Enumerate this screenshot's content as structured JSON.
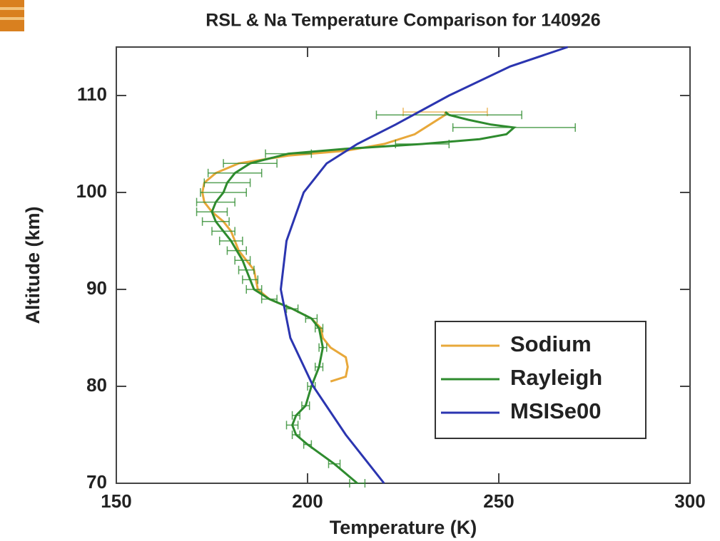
{
  "chart_data": {
    "type": "line",
    "title": "RSL & Na Temperature Comparison for 140926",
    "x_label": "Temperature (K)",
    "y_label": "Altitude (km)",
    "xlim": [
      150,
      300
    ],
    "ylim": [
      70,
      115
    ],
    "xticks": [
      150,
      200,
      250,
      300
    ],
    "yticks": [
      70,
      80,
      90,
      100,
      110
    ],
    "legend": "lower right",
    "series": [
      {
        "name": "Sodium",
        "color": "#e8a83a",
        "y": [
          80.5,
          81,
          82,
          83,
          84,
          85,
          86,
          87,
          88,
          89,
          90,
          91,
          92,
          93,
          94,
          95,
          96,
          97,
          98,
          99,
          100,
          101,
          102,
          103,
          103.8,
          104.3,
          105,
          106,
          107,
          108,
          108.3
        ],
        "x": [
          206,
          210,
          210.5,
          210,
          206,
          204,
          203.5,
          201,
          196,
          190,
          187,
          186.5,
          186,
          184,
          182,
          181,
          180,
          178,
          175,
          173,
          172.5,
          173,
          176,
          182,
          195,
          210,
          220,
          228,
          232,
          236,
          236
        ],
        "xerr": [
          null,
          null,
          null,
          null,
          null,
          null,
          null,
          null,
          null,
          null,
          null,
          null,
          null,
          null,
          null,
          null,
          null,
          null,
          null,
          null,
          null,
          null,
          null,
          null,
          null,
          null,
          null,
          null,
          null,
          null,
          11
        ]
      },
      {
        "name": "Rayleigh",
        "color": "#2e8b2e",
        "y": [
          70,
          72,
          74,
          75,
          76,
          77,
          78,
          80,
          82,
          84,
          86,
          87,
          88,
          89,
          90,
          91,
          92,
          93,
          94,
          95,
          96,
          97,
          98,
          99,
          100,
          101,
          102,
          103,
          104,
          104.5,
          105,
          105.5,
          106,
          106.7,
          107,
          107.5,
          108,
          108.3
        ],
        "x": [
          213,
          207,
          200,
          197,
          196,
          197,
          199.5,
          201,
          203,
          204,
          203,
          201,
          196,
          190,
          186,
          185,
          184,
          183,
          181.5,
          180,
          178,
          176,
          175,
          176,
          178,
          179,
          181,
          185,
          195,
          210,
          230,
          245,
          252,
          254,
          248,
          242,
          237,
          236
        ],
        "xerr": [
          2,
          1.5,
          1,
          1,
          1.5,
          1,
          1,
          1,
          1,
          1,
          1,
          1.5,
          1.5,
          2,
          2,
          2,
          2,
          2,
          2.5,
          3,
          3,
          3.5,
          4,
          5,
          6,
          6,
          7,
          7,
          6,
          null,
          7,
          null,
          null,
          16,
          null,
          null,
          19,
          null
        ]
      },
      {
        "name": "MSISe00",
        "color": "#2b35b0",
        "y": [
          70,
          75,
          80,
          85,
          90,
          95,
          100,
          103,
          105,
          107,
          110,
          113,
          115
        ],
        "x": [
          220,
          210,
          201.5,
          195.5,
          193,
          194.5,
          199,
          205,
          213,
          223,
          237,
          253,
          268
        ]
      }
    ]
  }
}
